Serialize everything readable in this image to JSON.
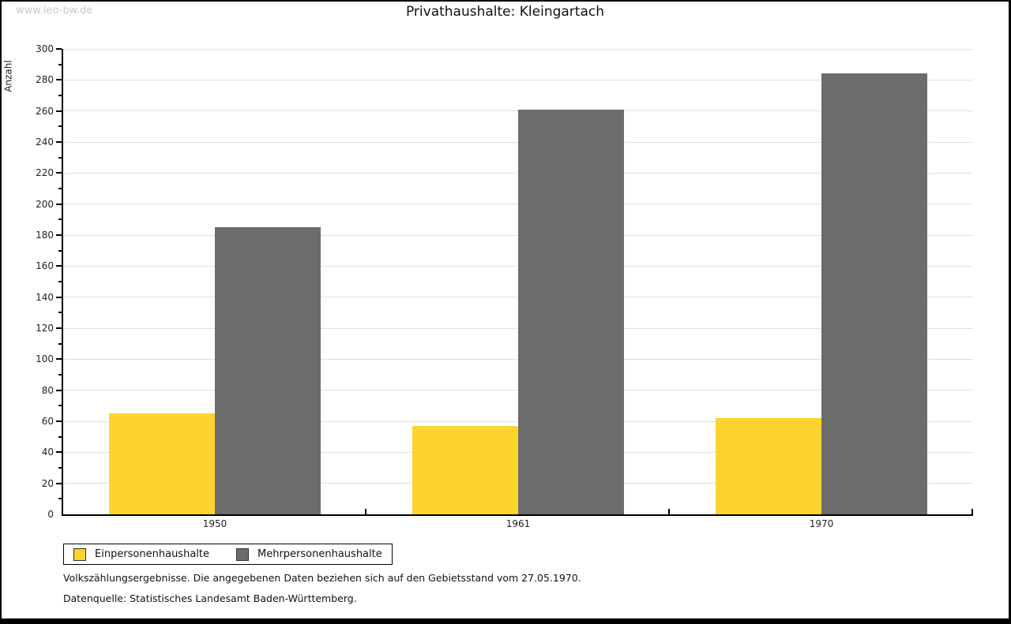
{
  "watermark": "www.leo-bw.de",
  "title": "Privathaushalte: Kleingartach",
  "chart_data": {
    "type": "bar",
    "title": "Privathaushalte: Kleingartach",
    "xlabel": "",
    "ylabel": "Anzahl",
    "categories": [
      "1950",
      "1961",
      "1970"
    ],
    "series": [
      {
        "name": "Einpersonenhaushalte",
        "color": "#fdd42e",
        "values": [
          65,
          57,
          62
        ]
      },
      {
        "name": "Mehrpersonenhaushalte",
        "color": "#6c6c6c",
        "values": [
          185,
          261,
          284
        ]
      }
    ],
    "ylim": [
      0,
      300
    ],
    "y_major_step": 20,
    "y_minor_step": 10,
    "grid": true,
    "gridline_color": "#e0e0e0",
    "axis_color": "#000000",
    "legend_position": "bottom-left"
  },
  "footnotes": {
    "line1": "Volkszählungsergebnisse. Die angegebenen Daten beziehen sich auf den Gebietsstand vom 27.05.1970.",
    "line2": "Datenquelle: Statistisches Landesamt Baden-Württemberg."
  }
}
